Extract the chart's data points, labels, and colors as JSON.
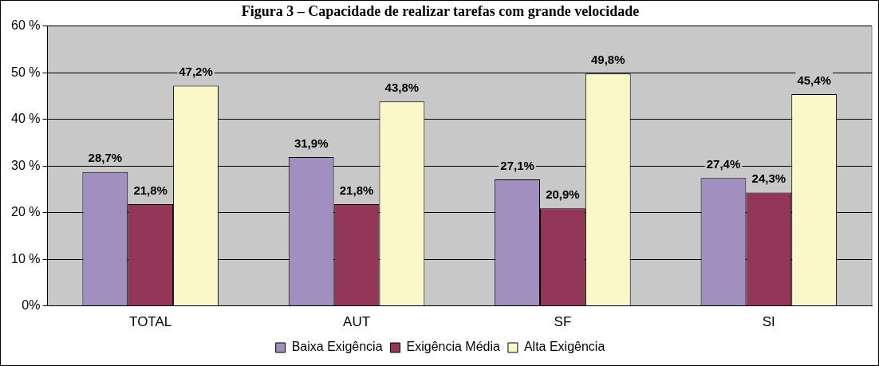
{
  "chart_data": {
    "type": "bar",
    "title": "Figura 3 – Capacidade de realizar tarefas com grande velocidade",
    "categories": [
      "TOTAL",
      "AUT",
      "SF",
      "SI"
    ],
    "series": [
      {
        "name": "Baixa Exigência",
        "color": "#a08fbf",
        "values": [
          28.7,
          31.9,
          27.1,
          27.4
        ],
        "value_labels": [
          "28,7%",
          "31,9%",
          "27,1%",
          "27,4%"
        ]
      },
      {
        "name": "Exigência Média",
        "color": "#933759",
        "values": [
          21.8,
          21.8,
          20.9,
          24.3
        ],
        "value_labels": [
          "21,8%",
          "21,8%",
          "20,9%",
          "24,3%"
        ]
      },
      {
        "name": "Alta Exigência",
        "color": "#faf7c8",
        "values": [
          47.2,
          43.8,
          49.8,
          45.4
        ],
        "value_labels": [
          "47,2%",
          "43,8%",
          "49,8%",
          "45,4%"
        ]
      }
    ],
    "ylim": [
      0,
      60
    ],
    "yticks": [
      {
        "value": 0,
        "label": "0%"
      },
      {
        "value": 10,
        "label": "10 %"
      },
      {
        "value": 20,
        "label": "20 %"
      },
      {
        "value": 30,
        "label": "30 %"
      },
      {
        "value": 40,
        "label": "40 %"
      },
      {
        "value": 50,
        "label": "50 %"
      },
      {
        "value": 60,
        "label": "60 %"
      }
    ],
    "grid": "y",
    "legend": "bottom"
  }
}
